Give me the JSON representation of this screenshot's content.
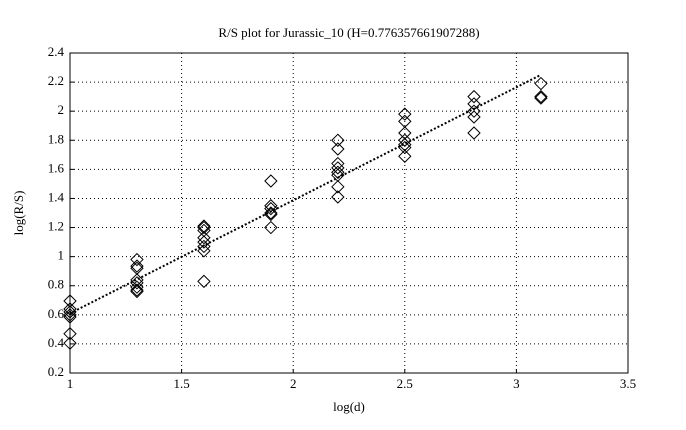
{
  "chart_data": {
    "type": "scatter",
    "title": "R/S plot for Jurassic_10 (H=0.776357661907288)",
    "xlabel": "log(d)",
    "ylabel": "log(R/S)",
    "xlim": [
      1,
      3.5
    ],
    "xticks": [
      1,
      1.5,
      2,
      2.5,
      3,
      3.5
    ],
    "ylim": [
      0.2,
      2.4
    ],
    "yticks": [
      0.2,
      0.4,
      0.6,
      0.8,
      1,
      1.2,
      1.4,
      1.6,
      1.8,
      2,
      2.2,
      2.4
    ],
    "grid": true,
    "series": [
      {
        "type": "scatter",
        "color": "#000000",
        "x": [
          1,
          1,
          1,
          1,
          1,
          1,
          1,
          1.3,
          1.3,
          1.3,
          1.3,
          1.3,
          1.3,
          1.3,
          1.3,
          1.6,
          1.6,
          1.6,
          1.6,
          1.6,
          1.6,
          1.6,
          1.6,
          1.9,
          1.9,
          1.9,
          1.9,
          1.9,
          1.9,
          2.2,
          2.2,
          2.2,
          2.2,
          2.2,
          2.2,
          2.2,
          2.2,
          2.5,
          2.5,
          2.5,
          2.5,
          2.5,
          2.5,
          2.5,
          2.81,
          2.81,
          2.81,
          2.81,
          2.81,
          3.11,
          3.11,
          3.11
        ],
        "values": [
          0.695,
          0.64,
          0.62,
          0.6,
          0.585,
          0.47,
          0.405,
          0.98,
          0.935,
          0.92,
          0.84,
          0.82,
          0.79,
          0.77,
          0.76,
          1.21,
          1.2,
          1.18,
          1.13,
          1.1,
          1.07,
          1.04,
          0.83,
          1.52,
          1.35,
          1.33,
          1.3,
          1.29,
          1.2,
          1.8,
          1.74,
          1.64,
          1.61,
          1.58,
          1.56,
          1.48,
          1.41,
          1.98,
          1.93,
          1.85,
          1.8,
          1.77,
          1.75,
          1.69,
          2.1,
          2.05,
          2.0,
          1.96,
          1.85,
          2.19,
          2.1,
          2.09
        ]
      },
      {
        "type": "line",
        "color": "#000000",
        "x": [
          1,
          3.11
        ],
        "values": [
          0.61,
          2.25
        ]
      }
    ]
  }
}
